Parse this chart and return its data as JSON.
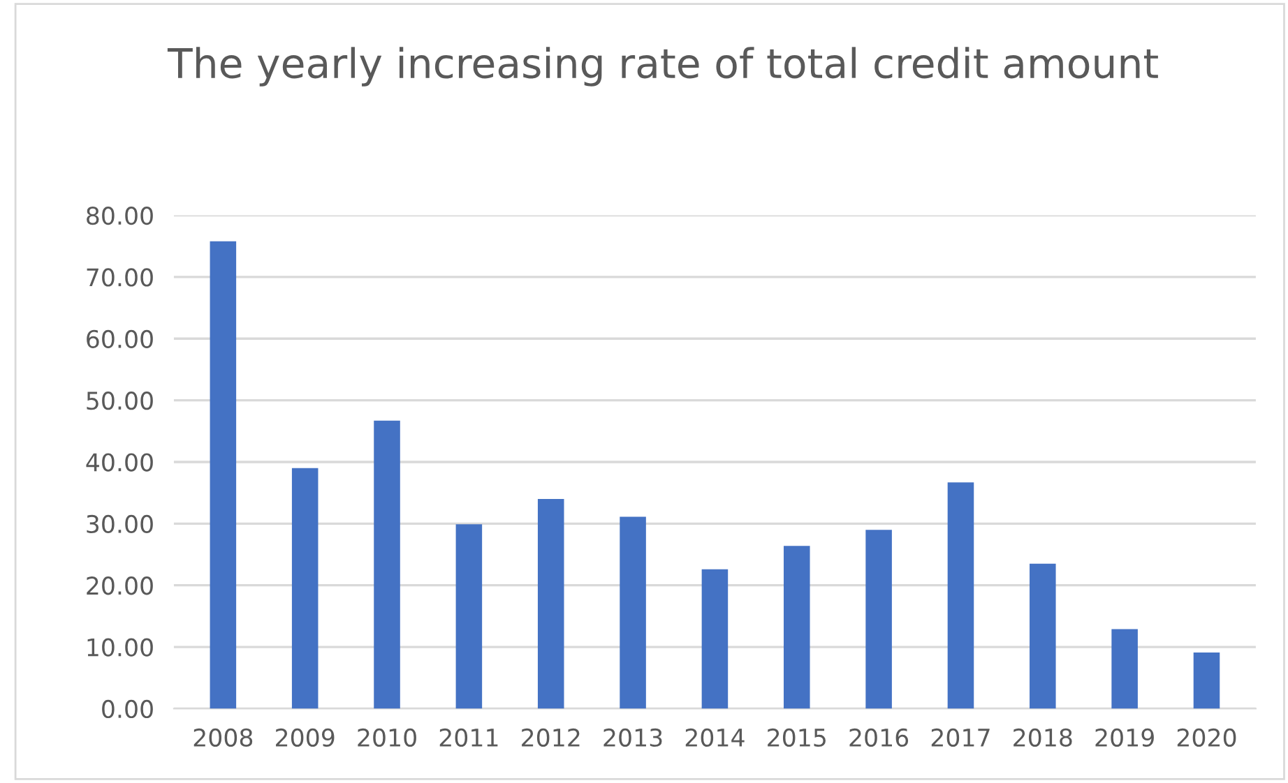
{
  "chart_data": {
    "type": "bar",
    "title": "The yearly increasing rate of total credit amount",
    "categories": [
      "2008",
      "2009",
      "2010",
      "2011",
      "2012",
      "2013",
      "2014",
      "2015",
      "2016",
      "2017",
      "2018",
      "2019",
      "2020"
    ],
    "values": [
      75.8,
      39.0,
      46.7,
      29.9,
      34.0,
      31.1,
      22.6,
      26.4,
      29.0,
      36.7,
      23.5,
      12.9,
      9.1
    ],
    "color": "#4472c4",
    "ylim": [
      0,
      80
    ],
    "yticks": [
      {
        "value": 0,
        "label": "0.00"
      },
      {
        "value": 10,
        "label": "10.00"
      },
      {
        "value": 20,
        "label": "20.00"
      },
      {
        "value": 30,
        "label": "30.00"
      },
      {
        "value": 40,
        "label": "40.00"
      },
      {
        "value": 50,
        "label": "50.00"
      },
      {
        "value": 60,
        "label": "60.00"
      },
      {
        "value": 70,
        "label": "70.00"
      },
      {
        "value": 80,
        "label": "80.00"
      }
    ],
    "grid": "y",
    "legend": false
  }
}
